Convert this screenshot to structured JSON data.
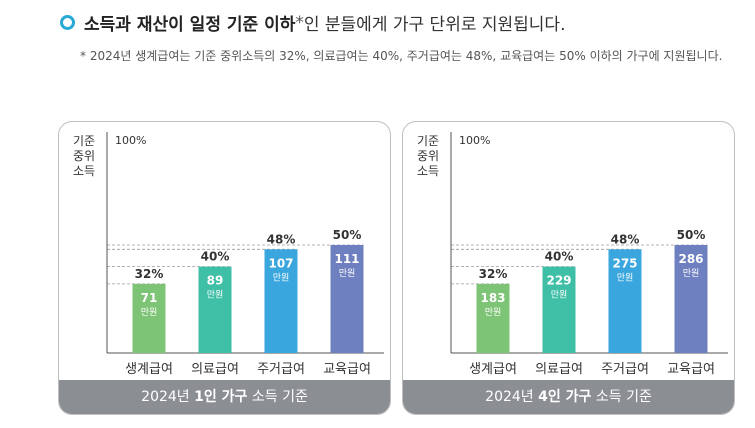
{
  "heading": {
    "bold": "소득과 재산이 일정 기준 이하",
    "star": "*",
    "rest": "인 분들에게 가구 단위로 지원됩니다."
  },
  "note": "* 2024년 생계급여는 기준 중위소득의 32%, 의료급여는 40%, 주거급여는 48%, 교육급여는 50% 이하의 가구에 지원됩니다.",
  "colors": {
    "ring": "#29a9d6",
    "footer": "#8b8f94"
  },
  "chart_data": [
    {
      "type": "bar",
      "ylabel": [
        "기준",
        "중위",
        "소득"
      ],
      "top_tick": "100%",
      "ylim": [
        0,
        100
      ],
      "categories": [
        "생계급여",
        "의료급여",
        "주거급여",
        "교육급여"
      ],
      "percent_labels": [
        "32%",
        "40%",
        "48%",
        "50%"
      ],
      "values": [
        32,
        40,
        48,
        50
      ],
      "amounts": [
        "71",
        "89",
        "107",
        "111"
      ],
      "unit": "만원",
      "colors": [
        "#7dc476",
        "#3fbfa6",
        "#3aa6de",
        "#6f80c0"
      ],
      "footer": {
        "pre": "2024년 ",
        "bold": "1인 가구",
        "post": " 소득 기준"
      }
    },
    {
      "type": "bar",
      "ylabel": [
        "기준",
        "중위",
        "소득"
      ],
      "top_tick": "100%",
      "ylim": [
        0,
        100
      ],
      "categories": [
        "생계급여",
        "의료급여",
        "주거급여",
        "교육급여"
      ],
      "percent_labels": [
        "32%",
        "40%",
        "48%",
        "50%"
      ],
      "values": [
        32,
        40,
        48,
        50
      ],
      "amounts": [
        "183",
        "229",
        "275",
        "286"
      ],
      "unit": "만원",
      "colors": [
        "#7dc476",
        "#3fbfa6",
        "#3aa6de",
        "#6f80c0"
      ],
      "footer": {
        "pre": "2024년 ",
        "bold": "4인 가구",
        "post": " 소득 기준"
      }
    }
  ]
}
